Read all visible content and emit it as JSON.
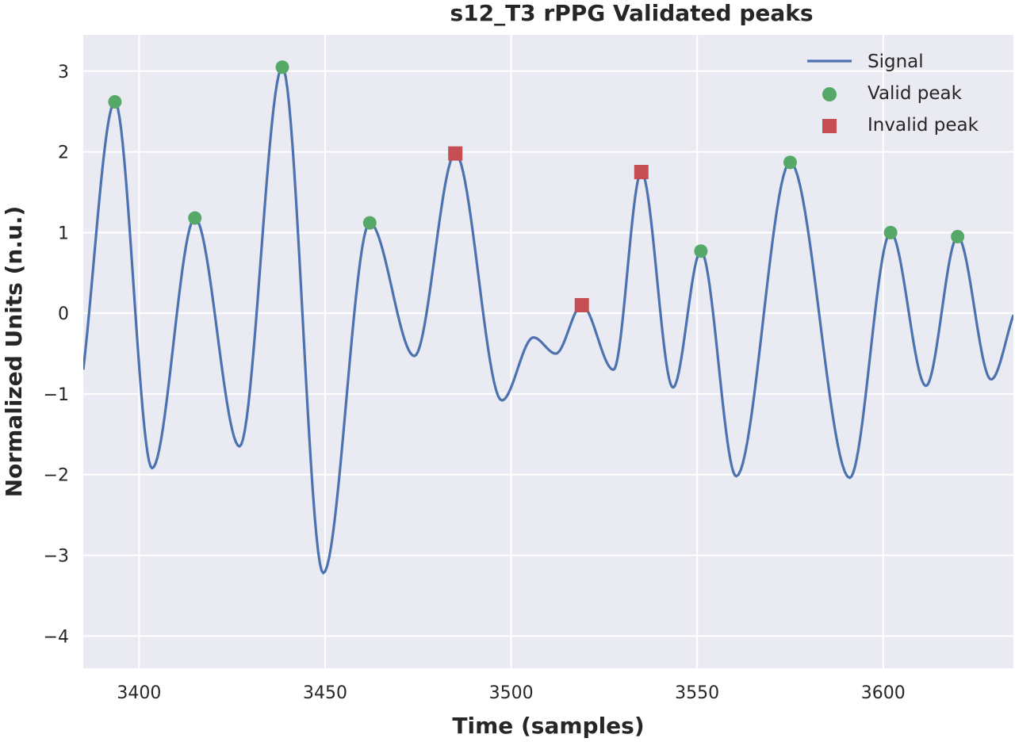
{
  "chart_data": {
    "type": "line",
    "title": "s12_T3 rPPG   Validated peaks",
    "xlabel": "Time (samples)",
    "ylabel": "Normalized Units (n.u.)",
    "xlim": [
      3385,
      3635
    ],
    "ylim": [
      -4.4,
      3.45
    ],
    "xticks": [
      3400,
      3450,
      3500,
      3550,
      3600
    ],
    "yticks": [
      3,
      2,
      1,
      0,
      -1,
      -2,
      -3,
      -4
    ],
    "xtick_labels": [
      "3400",
      "3450",
      "3500",
      "3550",
      "3600"
    ],
    "ytick_labels": [
      "3",
      "2",
      "1",
      "0",
      "−1",
      "−2",
      "−3",
      "−4"
    ],
    "grid": true,
    "legend_position": "top-right",
    "colors": {
      "background": "#eaeaf2",
      "grid": "#ffffff",
      "signal": "#4c72b0",
      "valid": "#55a868",
      "invalid": "#c44e52"
    },
    "series": [
      {
        "name": "Signal",
        "kind": "line",
        "x": [
          3385,
          3393.5,
          3403.5,
          3415,
          3427,
          3438.5,
          3449.5,
          3462,
          3474,
          3485,
          3497.5,
          3506,
          3512,
          3519,
          3527.5,
          3535,
          3543.5,
          3551,
          3560.5,
          3575,
          3591,
          3602,
          3611.5,
          3620,
          3629,
          3635
        ],
        "y": [
          -0.7,
          2.62,
          -1.92,
          1.18,
          -1.65,
          3.05,
          -3.22,
          1.12,
          -0.53,
          1.98,
          -1.08,
          -0.3,
          -0.5,
          0.1,
          -0.7,
          1.75,
          -0.92,
          0.77,
          -2.02,
          1.87,
          -2.04,
          1.0,
          -0.9,
          0.95,
          -0.82,
          -0.02
        ]
      },
      {
        "name": "Valid peak",
        "kind": "scatter",
        "marker": "circle",
        "x": [
          3393.5,
          3415,
          3438.5,
          3462,
          3551,
          3575,
          3602,
          3620
        ],
        "y": [
          2.62,
          1.18,
          3.05,
          1.12,
          0.77,
          1.87,
          1.0,
          0.95
        ]
      },
      {
        "name": "Invalid peak",
        "kind": "scatter",
        "marker": "square",
        "x": [
          3485,
          3519,
          3535
        ],
        "y": [
          1.98,
          0.1,
          1.75
        ]
      }
    ]
  }
}
